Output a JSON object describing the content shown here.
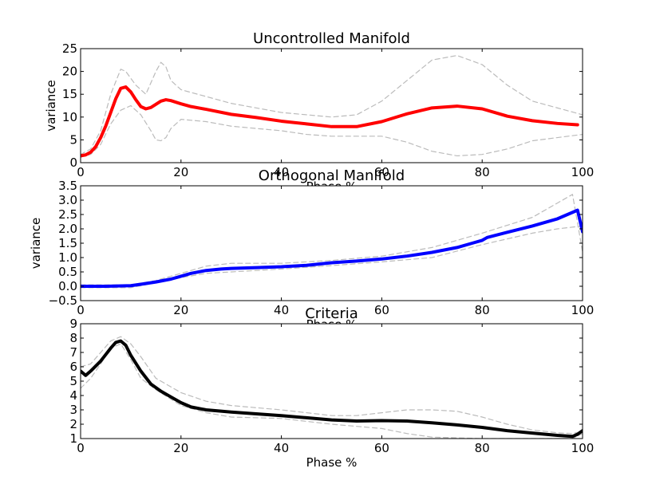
{
  "chart_data": [
    {
      "type": "line",
      "title": "Uncontrolled Manifold",
      "xlabel": "Phase %",
      "ylabel": "variance",
      "xlim": [
        0,
        100
      ],
      "ylim": [
        0,
        25
      ],
      "xticks": [
        "0",
        "20",
        "40",
        "60",
        "80",
        "100"
      ],
      "yticks": [
        "0",
        "5",
        "10",
        "15",
        "20",
        "25"
      ],
      "grid": false,
      "series": [
        {
          "role": "mean",
          "color": "#ff0000",
          "style": "solid",
          "x": [
            0,
            1,
            2,
            3,
            4,
            5,
            6,
            7,
            8,
            9,
            10,
            11,
            12,
            13,
            14,
            15,
            16,
            17,
            18,
            20,
            22,
            25,
            30,
            35,
            40,
            45,
            50,
            55,
            60,
            65,
            70,
            75,
            80,
            85,
            90,
            95,
            99
          ],
          "values": [
            1.5,
            1.7,
            2.3,
            3.5,
            5.5,
            8.0,
            11.0,
            14.0,
            16.3,
            16.6,
            15.5,
            13.8,
            12.3,
            11.8,
            12.1,
            12.8,
            13.5,
            13.8,
            13.6,
            12.9,
            12.3,
            11.7,
            10.6,
            9.9,
            9.1,
            8.5,
            7.9,
            7.9,
            9.0,
            10.7,
            12.0,
            12.4,
            11.8,
            10.2,
            9.2,
            8.6,
            8.3
          ]
        },
        {
          "role": "upper",
          "color": "#bbbbbb",
          "style": "dashed",
          "x": [
            0,
            2,
            4,
            6,
            8,
            9,
            11,
            13,
            15,
            16,
            17,
            18,
            20,
            25,
            30,
            40,
            50,
            55,
            60,
            65,
            70,
            75,
            80,
            85,
            90,
            95,
            100
          ],
          "values": [
            1.8,
            3.0,
            7.0,
            15.0,
            20.5,
            20.0,
            17.0,
            15.0,
            20.0,
            22.0,
            21.0,
            18.0,
            16.0,
            14.5,
            13.0,
            11.0,
            10.0,
            10.5,
            13.5,
            18.0,
            22.5,
            23.5,
            21.5,
            17.0,
            13.5,
            12.0,
            10.5
          ]
        },
        {
          "role": "lower",
          "color": "#bbbbbb",
          "style": "dashed",
          "x": [
            0,
            2,
            4,
            6,
            8,
            10,
            12,
            14,
            15,
            16,
            17,
            18,
            20,
            25,
            30,
            40,
            45,
            50,
            55,
            60,
            65,
            70,
            75,
            80,
            85,
            90,
            95,
            100
          ],
          "values": [
            1.2,
            1.8,
            4.0,
            8.5,
            11.5,
            12.5,
            10.5,
            7.0,
            5.0,
            4.8,
            5.5,
            7.5,
            9.5,
            9.0,
            8.0,
            7.0,
            6.2,
            5.8,
            5.8,
            5.8,
            4.5,
            2.5,
            1.5,
            1.8,
            3.0,
            4.8,
            5.5,
            6.2
          ]
        }
      ]
    },
    {
      "type": "line",
      "title": "Orthogonal Manifold",
      "xlabel": "Phase %",
      "ylabel": "variance",
      "xlim": [
        0,
        100
      ],
      "ylim": [
        -0.5,
        3.5
      ],
      "xticks": [
        "0",
        "20",
        "40",
        "60",
        "80",
        "100"
      ],
      "yticks": [
        "−0.5",
        "0.0",
        "0.5",
        "1.0",
        "1.5",
        "2.0",
        "2.5",
        "3.0",
        "3.5"
      ],
      "grid": false,
      "series": [
        {
          "role": "mean",
          "color": "#0000ff",
          "style": "solid",
          "x": [
            0,
            5,
            10,
            12,
            15,
            18,
            20,
            22,
            25,
            28,
            30,
            35,
            40,
            45,
            50,
            55,
            60,
            65,
            70,
            75,
            78,
            80,
            81,
            85,
            90,
            95,
            99,
            100
          ],
          "values": [
            0.0,
            0.0,
            0.02,
            0.07,
            0.15,
            0.25,
            0.35,
            0.45,
            0.55,
            0.6,
            0.62,
            0.65,
            0.68,
            0.73,
            0.82,
            0.88,
            0.95,
            1.05,
            1.18,
            1.35,
            1.5,
            1.6,
            1.7,
            1.88,
            2.1,
            2.35,
            2.65,
            1.9
          ]
        },
        {
          "role": "upper",
          "color": "#bbbbbb",
          "style": "dashed",
          "x": [
            0,
            10,
            15,
            20,
            25,
            30,
            40,
            50,
            60,
            70,
            80,
            90,
            95,
            98,
            100
          ],
          "values": [
            0.05,
            0.05,
            0.2,
            0.45,
            0.7,
            0.8,
            0.8,
            0.9,
            1.05,
            1.35,
            1.85,
            2.4,
            2.9,
            3.2,
            1.2
          ]
        },
        {
          "role": "lower",
          "color": "#bbbbbb",
          "style": "dashed",
          "x": [
            0,
            10,
            15,
            20,
            25,
            30,
            40,
            50,
            60,
            70,
            80,
            90,
            95,
            100
          ],
          "values": [
            -0.05,
            -0.05,
            0.12,
            0.3,
            0.45,
            0.5,
            0.6,
            0.72,
            0.85,
            1.0,
            1.45,
            1.85,
            2.0,
            2.1
          ]
        }
      ]
    },
    {
      "type": "line",
      "title": "Criteria",
      "xlabel": "Phase %",
      "ylabel": "",
      "xlim": [
        0,
        100
      ],
      "ylim": [
        1,
        9
      ],
      "xticks": [
        "0",
        "20",
        "40",
        "60",
        "80",
        "100"
      ],
      "yticks": [
        "1",
        "2",
        "3",
        "4",
        "5",
        "6",
        "7",
        "8",
        "9"
      ],
      "grid": false,
      "series": [
        {
          "role": "mean",
          "color": "#000000",
          "style": "solid",
          "x": [
            0,
            1,
            2,
            4,
            6,
            7,
            8,
            9,
            10,
            12,
            14,
            16,
            18,
            20,
            22,
            25,
            30,
            35,
            40,
            45,
            50,
            55,
            60,
            65,
            70,
            75,
            80,
            85,
            90,
            95,
            98,
            99,
            100
          ],
          "values": [
            5.7,
            5.4,
            5.7,
            6.4,
            7.3,
            7.7,
            7.8,
            7.5,
            6.8,
            5.7,
            4.8,
            4.3,
            3.9,
            3.5,
            3.2,
            3.0,
            2.85,
            2.72,
            2.6,
            2.45,
            2.3,
            2.22,
            2.25,
            2.22,
            2.1,
            1.95,
            1.78,
            1.55,
            1.38,
            1.22,
            1.15,
            1.3,
            1.55
          ]
        },
        {
          "role": "upper",
          "color": "#bbbbbb",
          "style": "dashed",
          "x": [
            0,
            2,
            4,
            6,
            8,
            10,
            12,
            15,
            20,
            25,
            30,
            40,
            50,
            55,
            60,
            65,
            70,
            75,
            80,
            85,
            90,
            95,
            98,
            100
          ],
          "values": [
            6.0,
            6.2,
            7.0,
            7.8,
            8.1,
            7.6,
            6.7,
            5.2,
            4.2,
            3.6,
            3.3,
            3.0,
            2.6,
            2.6,
            2.8,
            3.0,
            3.0,
            2.9,
            2.5,
            2.0,
            1.6,
            1.4,
            1.35,
            1.5
          ]
        },
        {
          "role": "lower",
          "color": "#bbbbbb",
          "style": "dashed",
          "x": [
            0,
            2,
            4,
            6,
            8,
            10,
            12,
            15,
            20,
            25,
            30,
            40,
            50,
            55,
            60,
            65,
            70,
            75,
            80,
            85,
            90,
            95,
            98,
            100
          ],
          "values": [
            4.5,
            5.2,
            6.2,
            7.3,
            7.6,
            6.5,
            5.2,
            4.4,
            3.3,
            2.8,
            2.5,
            2.4,
            2.0,
            1.85,
            1.7,
            1.35,
            1.1,
            1.05,
            1.0,
            1.0,
            1.0,
            1.0,
            1.0,
            1.35
          ]
        }
      ]
    }
  ]
}
